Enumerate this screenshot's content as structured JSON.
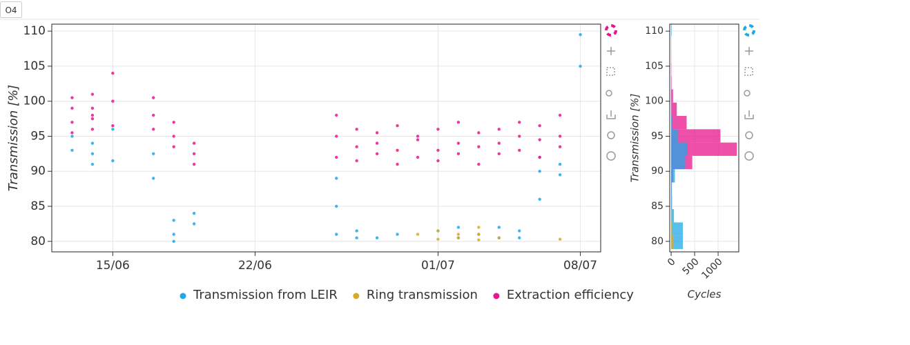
{
  "tab": "O4",
  "chart_data": [
    {
      "type": "scatter",
      "ylabel": "Transmission [%]",
      "xlim": [
        "12/06",
        "09/07"
      ],
      "xticks": [
        "15/06",
        "22/06",
        "01/07",
        "08/07"
      ],
      "ylim": [
        78.5,
        111
      ],
      "yticks": [
        80,
        85,
        90,
        95,
        100,
        105,
        110
      ],
      "grid": true,
      "legend": "bottom",
      "series": [
        {
          "name": "Transmission from LEIR",
          "color": "#1fa8e8",
          "x": [
            "13/06",
            "13/06",
            "14/06",
            "14/06",
            "14/06",
            "15/06",
            "15/06",
            "17/06",
            "17/06",
            "18/06",
            "18/06",
            "18/06",
            "19/06",
            "19/06",
            "26/06",
            "26/06",
            "26/06",
            "27/06",
            "27/06",
            "28/06",
            "29/06",
            "01/07",
            "02/07",
            "02/07",
            "03/07",
            "04/07",
            "04/07",
            "05/07",
            "05/07",
            "06/07",
            "06/07",
            "06/07",
            "07/07",
            "07/07",
            "08/07",
            "08/07"
          ],
          "values": [
            93,
            95,
            91,
            92.5,
            94,
            96,
            91.5,
            92.5,
            89,
            81,
            83,
            80,
            82.5,
            84,
            89,
            85,
            81,
            81.5,
            80.5,
            80.5,
            81,
            81.5,
            80.5,
            82,
            81,
            82,
            80.5,
            80.5,
            81.5,
            90,
            92,
            86,
            91,
            89.5,
            105,
            109.5
          ]
        },
        {
          "name": "Ring transmission",
          "color": "#d9a92c",
          "x": [
            "30/06",
            "01/07",
            "01/07",
            "02/07",
            "02/07",
            "03/07",
            "03/07",
            "03/07",
            "04/07",
            "07/07"
          ],
          "values": [
            81,
            80.3,
            81.5,
            80.5,
            81,
            80.2,
            82,
            81,
            80.5,
            80.3
          ]
        },
        {
          "name": "Extraction efficiency",
          "color": "#e8168c",
          "x": [
            "13/06",
            "13/06",
            "13/06",
            "13/06",
            "14/06",
            "14/06",
            "14/06",
            "14/06",
            "14/06",
            "15/06",
            "15/06",
            "15/06",
            "17/06",
            "17/06",
            "17/06",
            "18/06",
            "18/06",
            "18/06",
            "19/06",
            "19/06",
            "19/06",
            "26/06",
            "26/06",
            "26/06",
            "27/06",
            "27/06",
            "27/06",
            "28/06",
            "28/06",
            "28/06",
            "29/06",
            "29/06",
            "29/06",
            "30/06",
            "30/06",
            "30/06",
            "01/07",
            "01/07",
            "01/07",
            "02/07",
            "02/07",
            "02/07",
            "03/07",
            "03/07",
            "03/07",
            "04/07",
            "04/07",
            "04/07",
            "05/07",
            "05/07",
            "05/07",
            "06/07",
            "06/07",
            "06/07",
            "07/07",
            "07/07",
            "07/07"
          ],
          "values": [
            97,
            99,
            100.5,
            95.5,
            98,
            96,
            101,
            99,
            97.5,
            100,
            96.5,
            104,
            98,
            100.5,
            96,
            95,
            93.5,
            97,
            92.5,
            94,
            91,
            95,
            92,
            98,
            93.5,
            96,
            91.5,
            94,
            92.5,
            95.5,
            93,
            96.5,
            91,
            94.5,
            92,
            95,
            93,
            91.5,
            96,
            94,
            92.5,
            97,
            93.5,
            95.5,
            91,
            94,
            96,
            92.5,
            95,
            93,
            97,
            94.5,
            96.5,
            92,
            95,
            98,
            93.5
          ]
        }
      ]
    },
    {
      "type": "histogram",
      "orientation": "horizontal",
      "ylabel": "Transmission [%]",
      "xlabel": "Cycles",
      "xlim": [
        -30,
        1440
      ],
      "xticks": [
        0,
        500,
        1000
      ],
      "ylim": [
        78.5,
        111
      ],
      "yticks": [
        80,
        85,
        90,
        95,
        100,
        105,
        110
      ],
      "grid": true,
      "bins": [
        78.9,
        80.8,
        82.7,
        84.6,
        86.5,
        88.4,
        90.3,
        92.2,
        94.1,
        96.0,
        97.9,
        99.8,
        101.7,
        103.6,
        105.5,
        107.4,
        109.3,
        111.2
      ],
      "series": [
        {
          "name": "Transmission from LEIR",
          "color": "#1fa8e8",
          "values": [
            250,
            250,
            60,
            20,
            15,
            80,
            300,
            350,
            150,
            30,
            5,
            3,
            2,
            1,
            1,
            1,
            10
          ]
        },
        {
          "name": "Ring transmission",
          "color": "#d9a92c",
          "values": [
            60,
            30,
            5,
            0,
            0,
            0,
            0,
            0,
            0,
            0,
            0,
            0,
            0,
            0,
            0,
            0,
            0
          ]
        },
        {
          "name": "Extraction efficiency",
          "color": "#e8168c",
          "values": [
            2,
            3,
            5,
            10,
            15,
            40,
            450,
            1400,
            1050,
            330,
            120,
            40,
            10,
            5,
            2,
            1,
            1
          ]
        }
      ]
    }
  ]
}
